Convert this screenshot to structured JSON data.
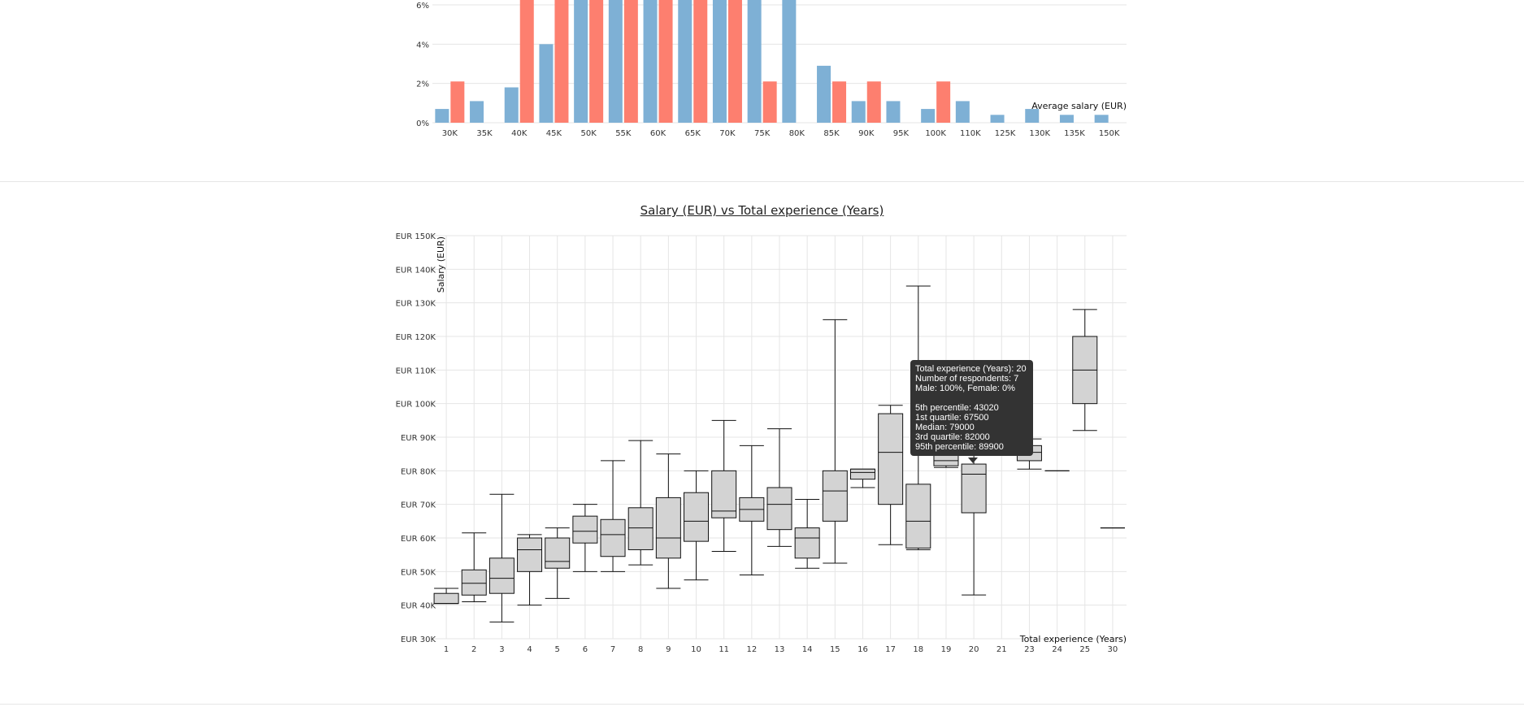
{
  "colors": {
    "male": "#7eb0d5",
    "female": "#fd7f6f",
    "box_fill": "#d3d3d3",
    "grid": "#e5e5e5"
  },
  "chart_data": [
    {
      "type": "bar",
      "title": "",
      "xlabel": "Average salary (EUR)",
      "ylabel": "",
      "ylim": [
        0,
        6
      ],
      "y_ticks": [
        "0%",
        "2%",
        "4%",
        "6%"
      ],
      "y_tick_values": [
        0,
        2,
        4,
        6
      ],
      "categories": [
        "30K",
        "35K",
        "40K",
        "45K",
        "50K",
        "55K",
        "60K",
        "65K",
        "70K",
        "75K",
        "80K",
        "85K",
        "90K",
        "95K",
        "100K",
        "110K",
        "125K",
        "130K",
        "135K",
        "150K"
      ],
      "series": [
        {
          "values": [
            0.7,
            1.1,
            1.8,
            4.0,
            6.5,
            6.5,
            6.5,
            6.5,
            6.5,
            6.5,
            6.5,
            2.9,
            1.1,
            1.1,
            0.7,
            1.1,
            0.4,
            0.7,
            0.4,
            0.4
          ]
        },
        {
          "values": [
            2.1,
            0,
            6.5,
            6.5,
            6.5,
            6.5,
            6.5,
            6.5,
            6.5,
            2.1,
            0,
            2.1,
            2.1,
            0,
            2.1,
            0,
            0,
            0,
            0,
            0
          ]
        }
      ],
      "grid": true
    },
    {
      "type": "box",
      "title": "Salary (EUR) vs Total experience (Years)",
      "xlabel": "Total experience (Years)",
      "ylabel": "Salary (EUR)",
      "ylim": [
        30000,
        150000
      ],
      "y_ticks": [
        "EUR 30K",
        "EUR 40K",
        "EUR 50K",
        "EUR 60K",
        "EUR 70K",
        "EUR 80K",
        "EUR 90K",
        "EUR 100K",
        "EUR 110K",
        "EUR 120K",
        "EUR 130K",
        "EUR 140K",
        "EUR 150K"
      ],
      "y_tick_values": [
        30000,
        40000,
        50000,
        60000,
        70000,
        80000,
        90000,
        100000,
        110000,
        120000,
        130000,
        140000,
        150000
      ],
      "categories": [
        "1",
        "2",
        "3",
        "4",
        "5",
        "6",
        "7",
        "8",
        "9",
        "10",
        "11",
        "12",
        "13",
        "14",
        "15",
        "16",
        "17",
        "18",
        "19",
        "20",
        "21",
        "23",
        "24",
        "25",
        "30"
      ],
      "boxes": [
        {
          "x": "1",
          "p5": 40500,
          "q1": 40500,
          "median": 40500,
          "q3": 43500,
          "p95": 45000
        },
        {
          "x": "2",
          "p5": 41000,
          "q1": 43000,
          "median": 46500,
          "q3": 50500,
          "p95": 61500
        },
        {
          "x": "3",
          "p5": 35000,
          "q1": 43500,
          "median": 48000,
          "q3": 54000,
          "p95": 73000
        },
        {
          "x": "4",
          "p5": 40000,
          "q1": 50000,
          "median": 56500,
          "q3": 60000,
          "p95": 61000
        },
        {
          "x": "5",
          "p5": 42000,
          "q1": 51000,
          "median": 53000,
          "q3": 60000,
          "p95": 63000
        },
        {
          "x": "6",
          "p5": 50000,
          "q1": 58500,
          "median": 62000,
          "q3": 66500,
          "p95": 70000
        },
        {
          "x": "7",
          "p5": 50000,
          "q1": 54500,
          "median": 61000,
          "q3": 65500,
          "p95": 83000
        },
        {
          "x": "8",
          "p5": 52000,
          "q1": 56500,
          "median": 63000,
          "q3": 69000,
          "p95": 89000
        },
        {
          "x": "9",
          "p5": 45000,
          "q1": 54000,
          "median": 60000,
          "q3": 72000,
          "p95": 85000
        },
        {
          "x": "10",
          "p5": 47500,
          "q1": 59000,
          "median": 65000,
          "q3": 73500,
          "p95": 80000
        },
        {
          "x": "11",
          "p5": 56000,
          "q1": 66000,
          "median": 68000,
          "q3": 80000,
          "p95": 95000
        },
        {
          "x": "12",
          "p5": 49000,
          "q1": 65000,
          "median": 68500,
          "q3": 72000,
          "p95": 87500
        },
        {
          "x": "13",
          "p5": 57500,
          "q1": 62500,
          "median": 70000,
          "q3": 75000,
          "p95": 92500
        },
        {
          "x": "14",
          "p5": 51000,
          "q1": 54000,
          "median": 60000,
          "q3": 63000,
          "p95": 71500
        },
        {
          "x": "15",
          "p5": 52500,
          "q1": 65000,
          "median": 74000,
          "q3": 80000,
          "p95": 125000
        },
        {
          "x": "16",
          "p5": 75000,
          "q1": 77500,
          "median": 79500,
          "q3": 80500,
          "p95": 80500
        },
        {
          "x": "17",
          "p5": 58000,
          "q1": 70000,
          "median": 85500,
          "q3": 97000,
          "p95": 99500
        },
        {
          "x": "18",
          "p5": 56500,
          "q1": 57000,
          "median": 65000,
          "q3": 76000,
          "p95": 135000
        },
        {
          "x": "19",
          "p5": 81000,
          "q1": 81500,
          "median": 83000,
          "q3": 85000,
          "p95": 89000
        },
        {
          "x": "20",
          "p5": 43020,
          "q1": 67500,
          "median": 79000,
          "q3": 82000,
          "p95": 89900
        },
        {
          "x": "21",
          "p5": 94000,
          "q1": 94000,
          "median": 94000,
          "q3": 94000,
          "p95": 94000
        },
        {
          "x": "23",
          "p5": 80500,
          "q1": 83000,
          "median": 85500,
          "q3": 87500,
          "p95": 89500
        },
        {
          "x": "24",
          "p5": 80000,
          "q1": 80000,
          "median": 80000,
          "q3": 80000,
          "p95": 80000
        },
        {
          "x": "25",
          "p5": 92000,
          "q1": 100000,
          "median": 110000,
          "q3": 120000,
          "p95": 128000
        },
        {
          "x": "30",
          "p5": 63000,
          "q1": 63000,
          "median": 63000,
          "q3": 63000,
          "p95": 63000
        }
      ],
      "grid": true,
      "tooltip": {
        "line1": "Total experience (Years): 20",
        "line2": "Number of respondents: 7",
        "line3": "Male: 100%, Female: 0%",
        "line4": "5th percentile: 43020",
        "line5": "1st quartile: 67500",
        "line6": "Median: 79000",
        "line7": "3rd quartile: 82000",
        "line8": "95th percentile: 89900"
      }
    }
  ]
}
